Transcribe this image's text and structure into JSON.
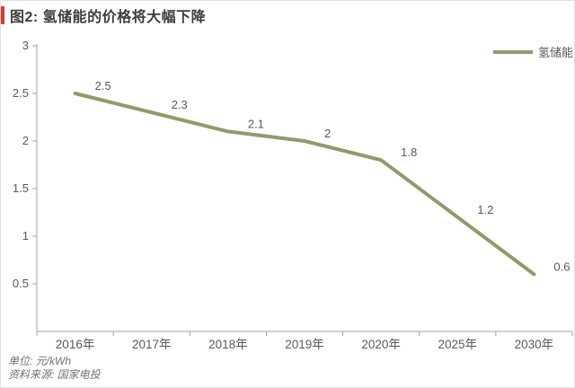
{
  "title": {
    "text": "图2: 氢储能的价格将大幅下降",
    "accent_color": "#e0382d"
  },
  "legend": {
    "label": "氢储能",
    "swatch_color": "#8d9c6b"
  },
  "footer": {
    "unit_line": "单位: 元/kWh",
    "source_line": "资料来源: 国家电投"
  },
  "colors": {
    "line": "#8d9c6b",
    "axis": "#a3a3a3",
    "tick_label": "#595959",
    "data_label": "#595959",
    "title_text": "#3d3d3d",
    "footer_text": "#737373",
    "accent": "#e0382d"
  },
  "chart_data": {
    "type": "line",
    "title": "图2: 氢储能的价格将大幅下降",
    "categories": [
      "2016年",
      "2017年",
      "2018年",
      "2019年",
      "2020年",
      "2025年",
      "2030年"
    ],
    "series": [
      {
        "name": "氢储能",
        "values": [
          2.5,
          2.3,
          2.1,
          2.0,
          1.8,
          1.2,
          0.6
        ],
        "color": "#8d9c6b"
      }
    ],
    "data_labels": [
      "2.5",
      "2.3",
      "2.1",
      "2",
      "1.8",
      "1.2",
      "0.6"
    ],
    "xlabel": "",
    "ylabel": "",
    "unit": "元/kWh",
    "ylim": [
      0,
      3
    ],
    "yticks": [
      0.5,
      1,
      1.5,
      2,
      2.5,
      3
    ],
    "ytick_labels": [
      "0.5",
      "1",
      "1.5",
      "2",
      "2.5",
      "3"
    ],
    "grid": false,
    "legend_position": "top-right",
    "source": "国家电投"
  }
}
